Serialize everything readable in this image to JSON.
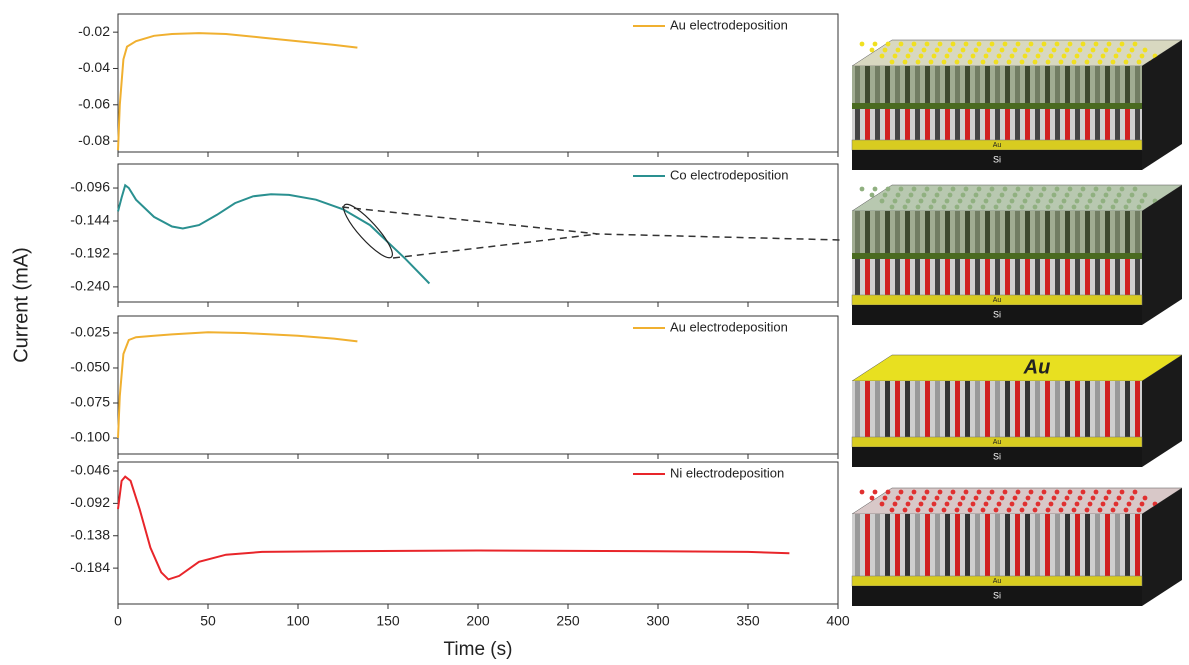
{
  "axis_labels": {
    "x": "Time (s)",
    "y": "Current (mA)"
  },
  "chart_data": [
    {
      "type": "line",
      "legend": "upper right",
      "x": [
        0,
        1,
        3,
        5,
        10,
        20,
        30,
        45,
        60,
        80,
        100,
        120,
        133
      ],
      "series": [
        {
          "name": "Au electrodeposition",
          "color": "#f0b030",
          "values": [
            -0.085,
            -0.06,
            -0.035,
            -0.028,
            -0.025,
            -0.022,
            -0.021,
            -0.0205,
            -0.021,
            -0.023,
            -0.025,
            -0.027,
            -0.0285
          ]
        }
      ],
      "xlim": [
        0,
        400
      ],
      "xticks": [
        0,
        50,
        100,
        150,
        200,
        250,
        300,
        350,
        400
      ],
      "ylim": [
        -0.086,
        -0.01
      ],
      "yticks": [
        -0.02,
        -0.04,
        -0.06,
        -0.08
      ]
    },
    {
      "type": "line",
      "legend": "upper right",
      "x": [
        0,
        2,
        4,
        6,
        10,
        20,
        30,
        36,
        45,
        55,
        65,
        75,
        85,
        95,
        110,
        125,
        140,
        150,
        160,
        173
      ],
      "series": [
        {
          "name": "Co electrodeposition",
          "color": "#2a9090",
          "values": [
            -0.13,
            -0.11,
            -0.092,
            -0.096,
            -0.113,
            -0.138,
            -0.152,
            -0.155,
            -0.15,
            -0.135,
            -0.118,
            -0.108,
            -0.105,
            -0.106,
            -0.113,
            -0.127,
            -0.15,
            -0.175,
            -0.2,
            -0.235
          ]
        }
      ],
      "xlim": [
        0,
        400
      ],
      "xticks": [
        0,
        50,
        100,
        150,
        200,
        250,
        300,
        350,
        400
      ],
      "ylim": [
        -0.262,
        -0.061
      ],
      "yticks": [
        -0.096,
        -0.144,
        -0.192,
        {
          "value": -0.24,
          "label": "-0.240"
        }
      ]
    },
    {
      "type": "line",
      "legend": "upper right",
      "x": [
        0,
        1,
        3,
        6,
        10,
        20,
        30,
        50,
        70,
        100,
        120,
        133
      ],
      "series": [
        {
          "name": "Au electrodeposition",
          "color": "#f0b030",
          "values": [
            -0.1,
            -0.07,
            -0.04,
            -0.03,
            -0.028,
            -0.027,
            -0.026,
            -0.0245,
            -0.025,
            -0.027,
            -0.029,
            -0.031
          ]
        }
      ],
      "xlim": [
        0,
        400
      ],
      "xticks": [
        0,
        50,
        100,
        150,
        200,
        250,
        300,
        350,
        400
      ],
      "ylim": [
        -0.1114,
        -0.0129
      ],
      "yticks": [
        -0.025,
        {
          "value": -0.05,
          "label": "-0.050"
        },
        -0.075,
        {
          "value": -0.1,
          "label": "-0.100"
        }
      ]
    },
    {
      "type": "line",
      "legend": "upper right",
      "x": [
        0,
        2,
        4,
        7,
        12,
        18,
        24,
        28,
        34,
        45,
        60,
        80,
        120,
        200,
        300,
        350,
        373
      ],
      "series": [
        {
          "name": "Ni electrodeposition",
          "color": "#e8252a",
          "values": [
            -0.1,
            -0.06,
            -0.054,
            -0.06,
            -0.1,
            -0.155,
            -0.19,
            -0.2,
            -0.195,
            -0.175,
            -0.165,
            -0.161,
            -0.16,
            -0.159,
            -0.16,
            -0.161,
            -0.163
          ]
        }
      ],
      "xlim": [
        0,
        400
      ],
      "xticks": [
        0,
        50,
        100,
        150,
        200,
        250,
        300,
        350,
        400
      ],
      "ylim": [
        -0.235,
        -0.0332
      ],
      "yticks": [
        -0.046,
        -0.092,
        -0.138,
        -0.184
      ]
    }
  ],
  "illustrations": [
    {
      "layers": [
        "Au",
        "Si"
      ]
    },
    {
      "layers": [
        "Au",
        "Si"
      ]
    },
    {
      "layers": [
        "Au",
        "Si"
      ],
      "cap": "Au"
    },
    {
      "layers": [
        "Au",
        "Si"
      ]
    }
  ]
}
